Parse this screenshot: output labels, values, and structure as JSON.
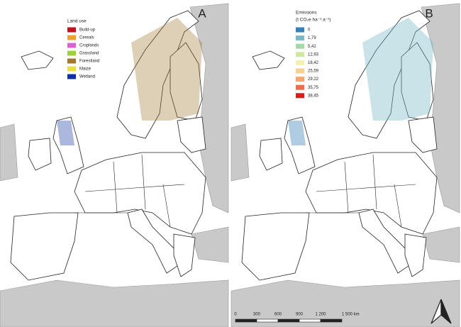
{
  "panels": [
    {
      "label": "A",
      "legend": {
        "title": "Land use",
        "items": [
          {
            "label": "Build-up",
            "color": "#c0141c"
          },
          {
            "label": "Cereals",
            "color": "#f0a030"
          },
          {
            "label": "Croplands",
            "color": "#e060d0"
          },
          {
            "label": "Grassland",
            "color": "#a0d040"
          },
          {
            "label": "Forestland",
            "color": "#a07830"
          },
          {
            "label": "Maize",
            "color": "#e8e040"
          },
          {
            "label": "Wetland",
            "color": "#1030a0"
          }
        ]
      }
    },
    {
      "label": "B",
      "legend": {
        "title": "Emissions",
        "subtitle": "(t CO₂e ha⁻¹ a⁻¹)",
        "items": [
          {
            "label": "0",
            "color": "#3a80b8"
          },
          {
            "label": "1,79",
            "color": "#7ab8c8"
          },
          {
            "label": "5,42",
            "color": "#a8d8a8"
          },
          {
            "label": "12,93",
            "color": "#d0e8a0"
          },
          {
            "label": "18,42",
            "color": "#f4f0b0"
          },
          {
            "label": "25,59",
            "color": "#f8d090"
          },
          {
            "label": "29,22",
            "color": "#f4a870"
          },
          {
            "label": "35,75",
            "color": "#e87050"
          },
          {
            "label": "38,45",
            "color": "#d02020"
          }
        ]
      }
    }
  ],
  "scale_bar": {
    "labels": [
      "0",
      "300",
      "600",
      "900",
      "1 200",
      "1 500 km"
    ]
  }
}
